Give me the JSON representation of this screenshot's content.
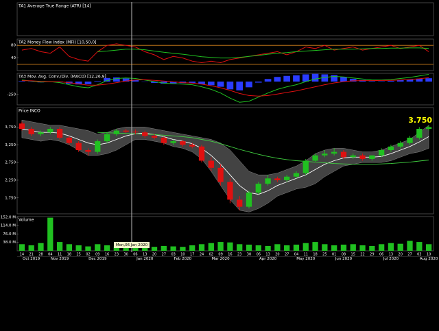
{
  "chart_data": [
    {
      "type": "empty",
      "title": "TA1 Average True Range (ATR) [14]"
    },
    {
      "type": "line",
      "title": "TA2 Money Flow Index (MFI) [10,50,0]",
      "ylim": [
        0,
        100
      ],
      "yticks": [
        80,
        40
      ],
      "levels": [
        80,
        20
      ],
      "level_color": "#e08a1e",
      "series": [
        {
          "color": "#e01010",
          "values": [
            65,
            70,
            60,
            55,
            75,
            45,
            35,
            30,
            60,
            80,
            85,
            80,
            75,
            60,
            50,
            35,
            45,
            40,
            30,
            25,
            30,
            25,
            35,
            40,
            45,
            50,
            55,
            60,
            50,
            60,
            75,
            70,
            80,
            65,
            70,
            75,
            65,
            70,
            75,
            80,
            70,
            75,
            80,
            60
          ]
        },
        {
          "color": "#20c020",
          "values": [
            null,
            null,
            null,
            null,
            null,
            null,
            null,
            null,
            60,
            62,
            65,
            68,
            68,
            66,
            62,
            58,
            55,
            52,
            48,
            44,
            42,
            40,
            40,
            42,
            45,
            48,
            52,
            55,
            57,
            60,
            62,
            64,
            66,
            68,
            68,
            68,
            69,
            70,
            70,
            71,
            71,
            72,
            72,
            70
          ]
        }
      ]
    },
    {
      "type": "macd",
      "title": "TA3 Mov. Avg. Conv./Div. (MACD) [12,26,9]",
      "ylim": [
        -450,
        160
      ],
      "yticks": [
        -250
      ],
      "series": [
        {
          "color": "#20c020",
          "values": [
            30,
            10,
            -10,
            0,
            -20,
            -60,
            -100,
            -120,
            -60,
            20,
            60,
            70,
            60,
            30,
            0,
            -30,
            -40,
            -50,
            -60,
            -100,
            -150,
            -220,
            -320,
            -400,
            -380,
            -300,
            -220,
            -150,
            -100,
            -60,
            0,
            50,
            80,
            100,
            90,
            70,
            50,
            30,
            30,
            40,
            60,
            80,
            110,
            140
          ]
        },
        {
          "color": "#e01010",
          "values": [
            20,
            15,
            5,
            0,
            -5,
            -20,
            -45,
            -70,
            -70,
            -50,
            -20,
            10,
            30,
            35,
            25,
            10,
            -5,
            -20,
            -30,
            -50,
            -80,
            -120,
            -170,
            -230,
            -270,
            -280,
            -270,
            -240,
            -210,
            -180,
            -140,
            -100,
            -60,
            -25,
            0,
            15,
            20,
            20,
            22,
            25,
            30,
            40,
            55,
            75
          ]
        }
      ],
      "histogram": {
        "color": "#2a3cff",
        "values": [
          10,
          -5,
          -15,
          0,
          -15,
          -40,
          -55,
          -50,
          10,
          70,
          80,
          60,
          30,
          -5,
          -25,
          -40,
          -35,
          -30,
          -30,
          -50,
          -70,
          -100,
          -150,
          -170,
          -110,
          -20,
          50,
          90,
          110,
          120,
          140,
          150,
          140,
          125,
          90,
          55,
          30,
          10,
          8,
          15,
          30,
          40,
          55,
          65
        ]
      }
    },
    {
      "type": "candlestick",
      "title": "Price INCO",
      "ylim": [
        1300,
        4300
      ],
      "yticks": [
        {
          "value": 3750,
          "label": "3,750"
        },
        {
          "value": 3250,
          "label": "3,250"
        },
        {
          "value": 2750,
          "label": "2,750"
        },
        {
          "value": 2250,
          "label": "2,250"
        },
        {
          "value": 1750,
          "label": "1,750"
        }
      ],
      "categories": [
        "14",
        "21",
        "28",
        "04",
        "11",
        "18",
        "25",
        "02",
        "09",
        "16",
        "23",
        "30",
        "06",
        "13",
        "20",
        "27",
        "03",
        "10",
        "17",
        "24",
        "02",
        "09",
        "16",
        "23",
        "30",
        "06",
        "13",
        "20",
        "27",
        "04",
        "11",
        "18",
        "25",
        "01",
        "08",
        "15",
        "22",
        "29",
        "06",
        "13",
        "20",
        "27",
        "03",
        "10"
      ],
      "months": [
        "Oct 2019",
        null,
        null,
        "Nov 2019",
        null,
        null,
        null,
        "Dec 2019",
        null,
        null,
        null,
        null,
        "Jan 2020",
        null,
        null,
        null,
        "Feb 2020",
        null,
        null,
        null,
        "Mar 2020",
        null,
        null,
        null,
        null,
        "Apr 2020",
        null,
        null,
        null,
        "May 2020",
        null,
        null,
        null,
        "Jun 2020",
        null,
        null,
        null,
        null,
        "Jul 2020",
        null,
        null,
        null,
        "Aug 2020",
        null
      ],
      "open": [
        3850,
        3700,
        3550,
        3600,
        3700,
        3450,
        3300,
        3100,
        3050,
        3350,
        3550,
        3650,
        3620,
        3600,
        3500,
        3450,
        3300,
        3350,
        3250,
        3200,
        2800,
        2600,
        2200,
        1700,
        1500,
        1900,
        2150,
        2300,
        2250,
        2350,
        2450,
        2800,
        2950,
        3000,
        3050,
        2900,
        2950,
        2850,
        2950,
        3100,
        3200,
        3300,
        3450,
        3700
      ],
      "high": [
        3900,
        3750,
        3650,
        3750,
        3750,
        3500,
        3350,
        3150,
        3400,
        3600,
        3700,
        3700,
        3680,
        3650,
        3550,
        3480,
        3400,
        3380,
        3300,
        3250,
        2900,
        2700,
        2300,
        1800,
        1950,
        2200,
        2400,
        2350,
        2400,
        2500,
        2850,
        3000,
        3100,
        3150,
        3100,
        3000,
        3000,
        2950,
        3150,
        3250,
        3350,
        3500,
        3750,
        3800
      ],
      "low": [
        3650,
        3500,
        3500,
        3550,
        3400,
        3250,
        3050,
        2950,
        3000,
        3300,
        3500,
        3580,
        3550,
        3450,
        3400,
        3250,
        3250,
        3200,
        3150,
        2750,
        2500,
        2100,
        1600,
        1400,
        1450,
        1850,
        2100,
        2200,
        2200,
        2300,
        2400,
        2750,
        2900,
        2950,
        2850,
        2850,
        2800,
        2800,
        2900,
        3050,
        3150,
        3250,
        3400,
        3650
      ],
      "close": [
        3700,
        3550,
        3600,
        3700,
        3450,
        3300,
        3100,
        3050,
        3350,
        3550,
        3650,
        3620,
        3600,
        3500,
        3450,
        3300,
        3350,
        3250,
        3200,
        2800,
        2600,
        2200,
        1700,
        1500,
        1900,
        2150,
        2300,
        2250,
        2350,
        2450,
        2800,
        2950,
        3000,
        3050,
        2900,
        2950,
        2850,
        2950,
        3100,
        3200,
        3300,
        3450,
        3700,
        3750
      ],
      "up_color": "#20c020",
      "down_color": "#e01010",
      "band": {
        "color": "#5a5a5a",
        "upper": [
          3950,
          3900,
          3850,
          3800,
          3800,
          3750,
          3700,
          3650,
          3550,
          3600,
          3700,
          3750,
          3750,
          3750,
          3700,
          3650,
          3600,
          3550,
          3500,
          3450,
          3400,
          3300,
          3100,
          2800,
          2500,
          2400,
          2400,
          2450,
          2550,
          2650,
          2800,
          3000,
          3100,
          3150,
          3150,
          3100,
          3050,
          3050,
          3100,
          3200,
          3300,
          3400,
          3600,
          3800
        ],
        "lower": [
          3450,
          3400,
          3350,
          3400,
          3350,
          3250,
          3100,
          2950,
          2950,
          3000,
          3100,
          3250,
          3400,
          3400,
          3350,
          3300,
          3200,
          3150,
          3050,
          2850,
          2500,
          2100,
          1700,
          1400,
          1350,
          1450,
          1600,
          1800,
          1900,
          2000,
          2050,
          2150,
          2350,
          2500,
          2650,
          2700,
          2750,
          2750,
          2750,
          2800,
          2900,
          3000,
          3050,
          3150
        ]
      },
      "overlays": [
        {
          "color": "#ffffff",
          "values": [
            3700,
            3650,
            3600,
            3600,
            3580,
            3500,
            3400,
            3300,
            3250,
            3300,
            3400,
            3500,
            3560,
            3580,
            3540,
            3480,
            3400,
            3350,
            3280,
            3150,
            2950,
            2700,
            2400,
            2100,
            1900,
            1850,
            1950,
            2100,
            2200,
            2300,
            2400,
            2550,
            2700,
            2800,
            2880,
            2900,
            2900,
            2900,
            2920,
            3000,
            3100,
            3200,
            3330,
            3480
          ]
        },
        {
          "color": "#40d040",
          "values": [
            null,
            null,
            null,
            null,
            null,
            null,
            null,
            null,
            3600,
            3590,
            3580,
            3570,
            3560,
            3550,
            3540,
            3520,
            3500,
            3480,
            3450,
            3400,
            3350,
            3280,
            3200,
            3120,
            3050,
            2980,
            2920,
            2870,
            2830,
            2800,
            2780,
            2760,
            2740,
            2720,
            2710,
            2700,
            2700,
            2700,
            2710,
            2720,
            2740,
            2760,
            2790,
            2820
          ]
        }
      ],
      "last_price_label": "3.750",
      "last_price_color": "#ffff00"
    },
    {
      "type": "bar",
      "title": "Volume",
      "ylim": [
        0,
        155
      ],
      "color": "#20c020",
      "yticks": [
        {
          "value": 152,
          "label": "152.0 M"
        },
        {
          "value": 114,
          "label": "114.0 M"
        },
        {
          "value": 76,
          "label": "76.0 M"
        },
        {
          "value": 38,
          "label": "38.0 M"
        }
      ],
      "values": [
        30,
        25,
        35,
        150,
        40,
        30,
        25,
        20,
        30,
        25,
        20,
        15,
        25,
        20,
        18,
        22,
        20,
        18,
        25,
        30,
        35,
        40,
        38,
        30,
        28,
        25,
        22,
        30,
        25,
        28,
        35,
        40,
        30,
        25,
        28,
        30,
        25,
        22,
        30,
        35,
        32,
        45,
        40,
        30
      ]
    }
  ],
  "crosshair_label": "Mon,06 Jan 2020"
}
